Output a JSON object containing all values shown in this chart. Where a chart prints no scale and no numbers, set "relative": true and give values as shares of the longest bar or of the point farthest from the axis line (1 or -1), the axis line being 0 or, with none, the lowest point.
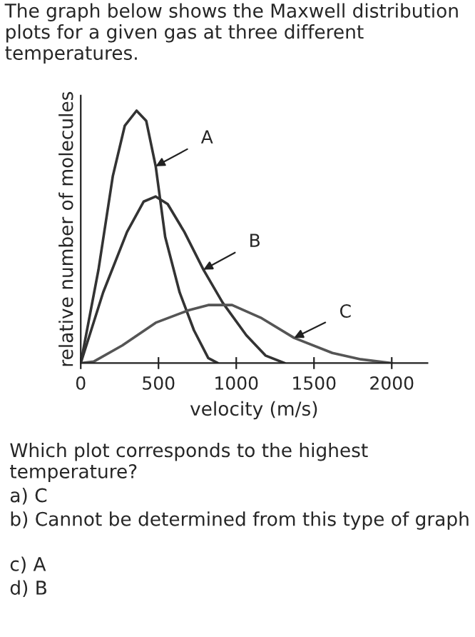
{
  "chart_data": {
    "type": "line",
    "relative": true,
    "title": "The graph below shows the Maxwell distribution plots for a given gas at three different temperatures.",
    "xlabel": "velocity (m/s)",
    "ylabel": "relative number of molecules",
    "xlim": [
      0,
      2230
    ],
    "xticks": [
      {
        "value": 0,
        "label": "0"
      },
      {
        "value": 500,
        "label": "500"
      },
      {
        "value": 1000,
        "label": "1000"
      },
      {
        "value": 1500,
        "label": "1500"
      },
      {
        "value": 2000,
        "label": "2000"
      }
    ],
    "series": [
      {
        "color": "#333333",
        "x": [
          0,
          114,
          206,
          283,
          359,
          421,
          482,
          543,
          636,
          728,
          820,
          881
        ],
        "values": [
          0,
          0.37,
          0.74,
          0.94,
          1.0,
          0.96,
          0.78,
          0.5,
          0.28,
          0.13,
          0.02,
          0
        ]
      },
      {
        "color": "#333333",
        "x": [
          0,
          144,
          298,
          405,
          482,
          559,
          666,
          789,
          912,
          1065,
          1188,
          1311
        ],
        "values": [
          0,
          0.28,
          0.52,
          0.64,
          0.66,
          0.63,
          0.52,
          0.37,
          0.24,
          0.11,
          0.03,
          0
        ]
      },
      {
        "color": "#555555",
        "x": [
          0,
          83,
          267,
          482,
          697,
          820,
          973,
          1157,
          1372,
          1618,
          1802,
          2002
        ],
        "values": [
          0,
          0.006,
          0.07,
          0.16,
          0.21,
          0.23,
          0.23,
          0.18,
          0.1,
          0.04,
          0.015,
          0
        ]
      }
    ],
    "grid": false,
    "legend": false,
    "marker": "none",
    "line_style": "solid",
    "annotations": [
      {
        "text": "A",
        "x": 482,
        "y": 0.78
      },
      {
        "text": "B",
        "x": 789,
        "y": 0.37
      },
      {
        "text": "C",
        "x": 1372,
        "y": 0.1
      },
      "Which plot corresponds to the highest temperature?",
      "a) C",
      "b) Cannot be determined from this type of graph",
      "c) A",
      "d) B"
    ]
  }
}
